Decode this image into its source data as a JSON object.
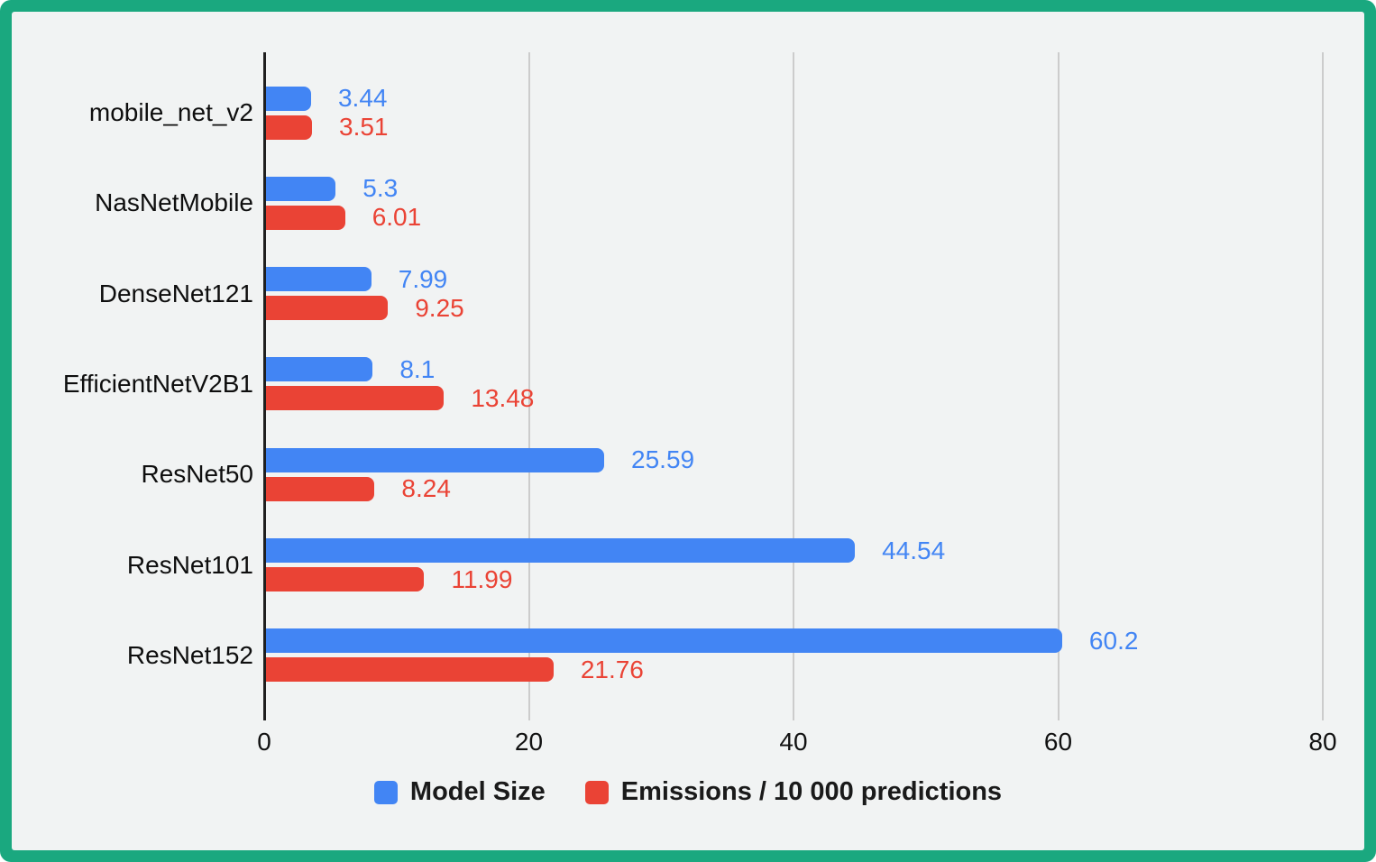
{
  "frame": {
    "border_color": "#1aa87f",
    "panel_color": "#f1f3f3"
  },
  "chart_data": {
    "type": "bar",
    "orientation": "horizontal",
    "title": "",
    "xlabel": "",
    "ylabel": "",
    "categories": [
      "mobile_net_v2",
      "NasNetMobile",
      "DenseNet121",
      "EfficientNetV2B1",
      "ResNet50",
      "ResNet101",
      "ResNet152"
    ],
    "series": [
      {
        "name": "Model Size",
        "color": "#4285f4",
        "values": [
          3.44,
          5.3,
          7.99,
          8.1,
          25.59,
          44.54,
          60.2
        ],
        "labels": [
          "3.44",
          "5.3",
          "7.99",
          "8.1",
          "25.59",
          "44.54",
          "60.2"
        ]
      },
      {
        "name": "Emissions / 10 000 predictions",
        "color": "#ea4335",
        "values": [
          3.51,
          6.01,
          9.25,
          13.48,
          8.24,
          11.99,
          21.76
        ],
        "labels": [
          "3.51",
          "6.01",
          "9.25",
          "13.48",
          "8.24",
          "11.99",
          "21.76"
        ]
      }
    ],
    "x_ticks": [
      0,
      20,
      40,
      60,
      80
    ],
    "xlim": [
      0,
      80
    ],
    "grid": true,
    "gridline_color": "#cccccc",
    "axis_color": "#1f1f1f",
    "legend_position": "bottom"
  }
}
